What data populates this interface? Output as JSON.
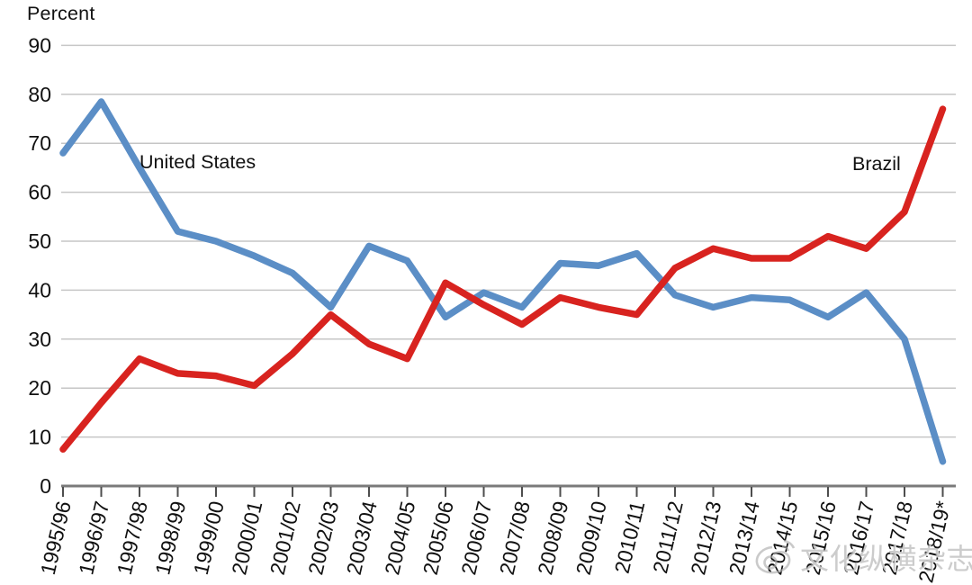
{
  "chart_data": {
    "type": "line",
    "title": "",
    "ylabel": "Percent",
    "xlabel": "",
    "ylim": [
      0,
      90
    ],
    "yticks": [
      0,
      10,
      20,
      30,
      40,
      50,
      60,
      70,
      80,
      90
    ],
    "grid": true,
    "legend_position": "inline-annotations",
    "x_categories": [
      "1995/96",
      "1996/97",
      "1997/98",
      "1998/99",
      "1999/00",
      "2000/01",
      "2001/02",
      "2002/03",
      "2003/04",
      "2004/05",
      "2005/06",
      "2006/07",
      "2007/08",
      "2008/09",
      "2009/10",
      "2010/11",
      "2011/12",
      "2012/13",
      "2013/14",
      "2014/15",
      "2015/16",
      "2016/17",
      "2017/18",
      "2018/19*"
    ],
    "series": [
      {
        "name": "United States",
        "color": "#5b8ec6",
        "values": [
          68,
          78.5,
          65,
          52,
          50,
          47,
          43.5,
          36.5,
          49,
          46,
          34.5,
          39.5,
          36.5,
          45.5,
          45,
          47.5,
          39,
          36.5,
          38.5,
          38,
          34.5,
          39.5,
          30,
          5
        ]
      },
      {
        "name": "Brazil",
        "color": "#d8231f",
        "values": [
          7.5,
          17,
          26,
          23,
          22.5,
          20.5,
          27,
          35,
          29,
          26,
          41.5,
          37,
          33,
          38.5,
          36.5,
          35,
          44.5,
          48.5,
          46.5,
          46.5,
          51,
          48.5,
          56,
          77
        ]
      }
    ]
  },
  "watermark": {
    "text": "文化纵横杂志",
    "icon": "weibo-logo"
  },
  "colors": {
    "grid": "#c6c6c6",
    "axis": "#7a7a7a",
    "tick": "#4d4d4d",
    "text": "#111111",
    "us_line": "#5b8ec6",
    "brazil_line": "#d8231f",
    "watermark": "#adadad"
  }
}
